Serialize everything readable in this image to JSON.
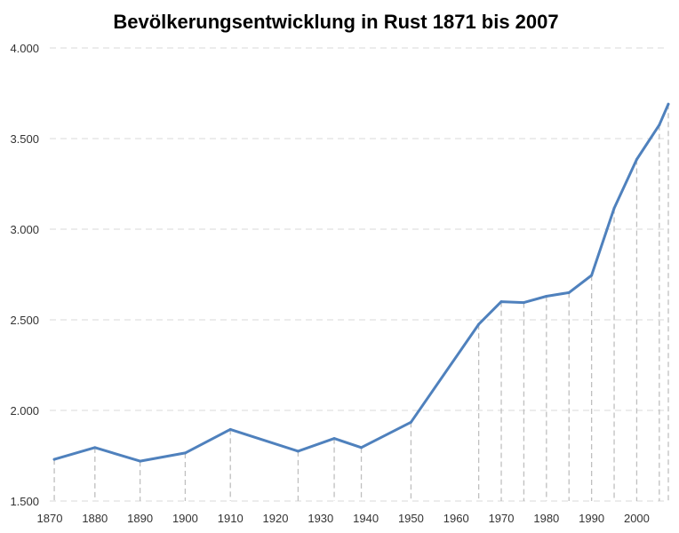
{
  "chart_data": {
    "type": "line",
    "title": "Bevölkerungsentwicklung in Rust 1871 bis 2007",
    "xlabel": "",
    "ylabel": "",
    "xlim": [
      1870,
      2007
    ],
    "ylim": [
      1500,
      4000
    ],
    "x_ticks": [
      "1870",
      "1880",
      "1890",
      "1900",
      "1910",
      "1920",
      "1930",
      "1940",
      "1950",
      "1960",
      "1970",
      "1980",
      "1990",
      "2000"
    ],
    "x_tick_values": [
      1870,
      1880,
      1890,
      1900,
      1910,
      1920,
      1930,
      1940,
      1950,
      1960,
      1970,
      1980,
      1990,
      2000
    ],
    "y_ticks": [
      "1.500",
      "2.000",
      "2.500",
      "3.000",
      "3.500",
      "4.000"
    ],
    "y_tick_values": [
      1500,
      2000,
      2500,
      3000,
      3500,
      4000
    ],
    "grid": true,
    "drop_lines": true,
    "series": [
      {
        "color": "#4f81bd",
        "points": [
          {
            "x": 1871,
            "y": 1730
          },
          {
            "x": 1880,
            "y": 1795
          },
          {
            "x": 1890,
            "y": 1720
          },
          {
            "x": 1900,
            "y": 1765
          },
          {
            "x": 1910,
            "y": 1895
          },
          {
            "x": 1925,
            "y": 1775
          },
          {
            "x": 1933,
            "y": 1845
          },
          {
            "x": 1939,
            "y": 1795
          },
          {
            "x": 1950,
            "y": 1935
          },
          {
            "x": 1965,
            "y": 2475
          },
          {
            "x": 1970,
            "y": 2600
          },
          {
            "x": 1975,
            "y": 2595
          },
          {
            "x": 1980,
            "y": 2630
          },
          {
            "x": 1985,
            "y": 2650
          },
          {
            "x": 1990,
            "y": 2745
          },
          {
            "x": 1995,
            "y": 3115
          },
          {
            "x": 2000,
            "y": 3385
          },
          {
            "x": 2005,
            "y": 3575
          },
          {
            "x": 2007,
            "y": 3690
          }
        ]
      }
    ]
  }
}
